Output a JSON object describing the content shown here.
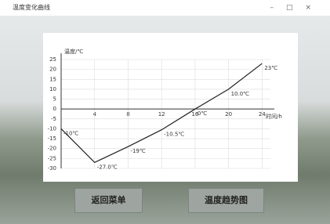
{
  "window": {
    "title": "温度变化曲线"
  },
  "buttons": [
    "返回菜单",
    "温度趋势图"
  ],
  "chart_data": {
    "type": "line",
    "ylabel": "温度/℃",
    "xlabel": "时间/h",
    "x": [
      0,
      4,
      8,
      12,
      16,
      20,
      24
    ],
    "series": [
      {
        "color": "#222222",
        "values": [
          -10,
          -27,
          -19,
          -10.5,
          0,
          10,
          23
        ],
        "value_labels": [
          "-10℃",
          "-27.0℃",
          "-19℃",
          "-10.5℃",
          "0℃",
          "10.0℃",
          "23℃"
        ]
      }
    ],
    "xlim": [
      0,
      25
    ],
    "xticks": [
      4,
      8,
      12,
      16,
      20,
      24
    ],
    "ylim": [
      -30,
      25
    ],
    "yticks": [
      25,
      20,
      15,
      10,
      5,
      0,
      -5,
      -10,
      -15,
      -20,
      -25,
      -30
    ],
    "grid": true
  }
}
